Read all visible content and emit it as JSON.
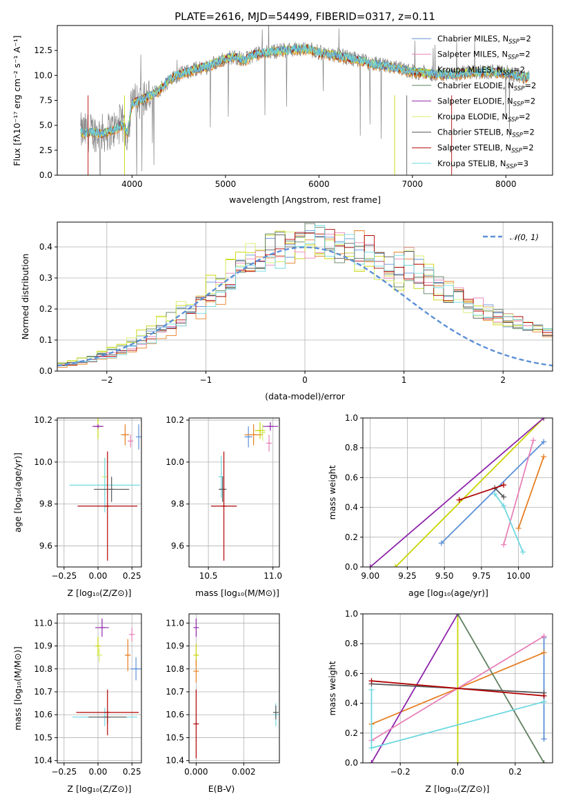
{
  "colors": {
    "chabrier_miles": "#5b8fd6",
    "salpeter_miles": "#e67e22",
    "kroupa_miles": "#c8d400",
    "chabrier_elodie": "#5f7f5f",
    "salpeter_elodie": "#8e24aa",
    "kroupa_elodie": "#d4ee66",
    "chabrier_stelib": "#555555",
    "salpeter_stelib": "#b00000",
    "kroupa_stelib": "#6ed8e0",
    "data": "#808080",
    "pink": "#e880b8"
  },
  "chart_data": [
    {
      "id": "spectrum",
      "type": "line",
      "title": "PLATE=2616, MJD=54499, FIBERID=0317, z=0.11",
      "xlabel": "wavelength [Angstrom, rest frame]",
      "ylabel": "Flux [fλ10⁻¹⁷ erg cm⁻² s⁻¹ A⁻¹]",
      "xlim": [
        3200,
        8500
      ],
      "ylim": [
        0,
        15
      ],
      "xticks": [
        "4000",
        "5000",
        "6000",
        "7000",
        "8000"
      ],
      "yticks": [
        "0.0",
        "2.5",
        "5.0",
        "7.5",
        "10.0",
        "12.5"
      ],
      "continuum": [
        [
          3450,
          4.3
        ],
        [
          3600,
          4.3
        ],
        [
          3700,
          4.2
        ],
        [
          3800,
          4.6
        ],
        [
          3900,
          5.1
        ],
        [
          3950,
          4.2
        ],
        [
          4000,
          7.2
        ],
        [
          4100,
          7.6
        ],
        [
          4200,
          8.0
        ],
        [
          4300,
          8.6
        ],
        [
          4400,
          9.6
        ],
        [
          4500,
          10.1
        ],
        [
          4700,
          10.7
        ],
        [
          4800,
          10.9
        ],
        [
          4900,
          11.3
        ],
        [
          5000,
          11.7
        ],
        [
          5100,
          11.9
        ],
        [
          5200,
          11.5
        ],
        [
          5300,
          12.1
        ],
        [
          5500,
          12.4
        ],
        [
          5800,
          12.7
        ],
        [
          5900,
          12.6
        ],
        [
          6000,
          12.3
        ],
        [
          6200,
          12.0
        ],
        [
          6400,
          11.6
        ],
        [
          6600,
          11.1
        ],
        [
          6800,
          10.8
        ],
        [
          7000,
          10.4
        ],
        [
          7200,
          10.2
        ],
        [
          7400,
          10.1
        ],
        [
          7600,
          10.3
        ],
        [
          7800,
          10.4
        ],
        [
          8000,
          10.3
        ],
        [
          8200,
          9.8
        ],
        [
          8250,
          9.9
        ]
      ],
      "legend": [
        {
          "name": "Chabrier MILES, N",
          "sub": "SSP",
          "suffix": "=2"
        },
        {
          "name": "Salpeter MILES, N",
          "sub": "SSP",
          "suffix": "=2"
        },
        {
          "name": "Kroupa MILES, N",
          "sub": "SSP",
          "suffix": "=2"
        },
        {
          "name": "Chabrier ELODIE, N",
          "sub": "SSP",
          "suffix": "=2"
        },
        {
          "name": "Salpeter ELODIE, N",
          "sub": "SSP",
          "suffix": "=2"
        },
        {
          "name": "Kroupa ELODIE, N",
          "sub": "SSP",
          "suffix": "=2"
        },
        {
          "name": "Chabrier STELIB, N",
          "sub": "SSP",
          "suffix": "=2"
        },
        {
          "name": "Salpeter STELIB, N",
          "sub": "SSP",
          "suffix": "=2"
        },
        {
          "name": "Kroupa STELIB, N",
          "sub": "SSP",
          "suffix": "=3"
        }
      ]
    },
    {
      "id": "residuals",
      "type": "line",
      "xlabel": "(data-model)/error",
      "ylabel": "Normed distribution",
      "xlim": [
        -2.5,
        2.5
      ],
      "ylim": [
        0,
        0.48
      ],
      "xticks": [
        "−2",
        "−1",
        "0",
        "1",
        "2"
      ],
      "yticks": [
        "0.0",
        "0.1",
        "0.2",
        "0.3",
        "0.4"
      ],
      "normal_label": "𝒩(0, 1)",
      "bin_width": 0.1,
      "shifts": [
        0.1,
        0.28,
        0.0,
        0.06,
        0.18,
        0.02,
        0.14,
        0.2,
        0.22
      ]
    },
    {
      "id": "age_vs_Z",
      "type": "scatter",
      "xlabel": "Z [log₁₀(Z/Z⊙)]",
      "ylabel": "age  [log₁₀(age/yr)]",
      "xlim": [
        -0.3,
        0.32
      ],
      "ylim": [
        9.5,
        10.21
      ],
      "xticks": [
        "−0.25",
        "0.00",
        "0.25"
      ],
      "yticks": [
        "9.6",
        "9.8",
        "10.0",
        "10.2"
      ],
      "points": [
        {
          "x": 0.3,
          "xerr": 0.0,
          "y": 10.12,
          "yerr": 0.06,
          "c": "chabrier_miles"
        },
        {
          "x": 0.2,
          "xerr": 0.03,
          "y": 10.13,
          "yerr": 0.05,
          "c": "salpeter_miles"
        },
        {
          "x": 0.0,
          "xerr": 0.03,
          "y": 10.17,
          "yerr": 0.06,
          "c": "kroupa_miles"
        },
        {
          "x": 0.0,
          "xerr": 0.04,
          "y": 10.17,
          "yerr": 0.01,
          "c": "salpeter_elodie"
        },
        {
          "x": 0.05,
          "xerr": 0.01,
          "y": 9.93,
          "yerr": 0.09,
          "c": "kroupa_elodie"
        },
        {
          "x": 0.05,
          "xerr": 0.26,
          "y": 9.89,
          "yerr": 0.13,
          "c": "kroupa_stelib"
        },
        {
          "x": 0.1,
          "xerr": 0.13,
          "y": 9.87,
          "yerr": 0.06,
          "c": "chabrier_stelib"
        },
        {
          "x": 0.07,
          "xerr": 0.22,
          "y": 9.79,
          "yerr": 0.26,
          "c": "salpeter_stelib"
        },
        {
          "x": 0.24,
          "xerr": 0.02,
          "y": 10.1,
          "yerr": 0.03,
          "c": "pink"
        }
      ]
    },
    {
      "id": "age_vs_mass",
      "type": "scatter",
      "xlabel": "mass [log₁₀(M/M⊙)]",
      "ylabel": "",
      "xlim": [
        10.35,
        11.05
      ],
      "ylim": [
        9.5,
        10.21
      ],
      "xticks": [
        "10.5",
        "11.0"
      ],
      "yticks": [
        "9.6",
        "9.8",
        "10.0",
        "10.2"
      ],
      "points": [
        {
          "x": 10.81,
          "xerr": 0.03,
          "y": 10.12,
          "yerr": 0.05,
          "c": "chabrier_miles"
        },
        {
          "x": 10.85,
          "xerr": 0.07,
          "y": 10.13,
          "yerr": 0.05,
          "c": "salpeter_miles"
        },
        {
          "x": 10.9,
          "xerr": 0.04,
          "y": 10.15,
          "yerr": 0.04,
          "c": "kroupa_miles"
        },
        {
          "x": 10.98,
          "xerr": 0.06,
          "y": 10.17,
          "yerr": 0.02,
          "c": "salpeter_elodie"
        },
        {
          "x": 10.92,
          "xerr": 0.02,
          "y": 10.14,
          "yerr": 0.04,
          "c": "kroupa_elodie"
        },
        {
          "x": 10.97,
          "xerr": 0.02,
          "y": 10.09,
          "yerr": 0.04,
          "c": "pink"
        },
        {
          "x": 10.6,
          "xerr": 0.01,
          "y": 9.93,
          "yerr": 0.1,
          "c": "kroupa_stelib"
        },
        {
          "x": 10.61,
          "xerr": 0.03,
          "y": 9.87,
          "yerr": 0.06,
          "c": "chabrier_stelib"
        },
        {
          "x": 10.62,
          "xerr": 0.1,
          "y": 9.79,
          "yerr": 0.26,
          "c": "salpeter_stelib"
        }
      ]
    },
    {
      "id": "weight_vs_age",
      "type": "line",
      "xlabel": "age  [log₁₀(age/yr)]",
      "ylabel": "mass weight",
      "xlim": [
        8.95,
        10.23
      ],
      "ylim": [
        0,
        1
      ],
      "xticks": [
        "9.00",
        "9.25",
        "9.50",
        "9.75",
        "10.00"
      ],
      "yticks": [
        "0.0",
        "0.2",
        "0.4",
        "0.6",
        "0.8",
        "1.0"
      ],
      "series": [
        {
          "c": "chabrier_miles",
          "x": [
            9.48,
            10.17
          ],
          "y": [
            0.16,
            0.84
          ]
        },
        {
          "c": "salpeter_miles",
          "x": [
            10.0,
            10.17
          ],
          "y": [
            0.26,
            0.74
          ]
        },
        {
          "c": "kroupa_miles",
          "x": [
            9.17,
            10.17
          ],
          "y": [
            0.0,
            1.0
          ]
        },
        {
          "c": "salpeter_elodie",
          "x": [
            9.0,
            10.17
          ],
          "y": [
            0.0,
            1.0
          ]
        },
        {
          "c": "pink",
          "x": [
            9.9,
            10.1
          ],
          "y": [
            0.15,
            0.85
          ]
        },
        {
          "c": "kroupa_stelib",
          "x": [
            9.84,
            9.9,
            10.03
          ],
          "y": [
            0.49,
            0.41,
            0.1
          ]
        },
        {
          "c": "chabrier_stelib",
          "x": [
            9.84,
            9.9
          ],
          "y": [
            0.53,
            0.47
          ]
        },
        {
          "c": "salpeter_stelib",
          "x": [
            9.6,
            9.9
          ],
          "y": [
            0.45,
            0.55
          ]
        }
      ]
    },
    {
      "id": "mass_vs_Z",
      "type": "scatter",
      "xlabel": "Z [log₁₀(Z/Z⊙)]",
      "ylabel": "mass [log₁₀(M/M⊙)]",
      "xlim": [
        -0.3,
        0.32
      ],
      "ylim": [
        10.39,
        11.04
      ],
      "xticks": [
        "−0.25",
        "0.00",
        "0.25"
      ],
      "yticks": [
        "10.4",
        "10.5",
        "10.6",
        "10.7",
        "10.8",
        "10.9",
        "11.0"
      ],
      "points": [
        {
          "x": 0.28,
          "xerr": 0.04,
          "y": 10.8,
          "yerr": 0.05,
          "c": "chabrier_miles"
        },
        {
          "x": 0.22,
          "xerr": 0.02,
          "y": 10.86,
          "yerr": 0.07,
          "c": "salpeter_miles"
        },
        {
          "x": 0.0,
          "xerr": 0.02,
          "y": 10.9,
          "yerr": 0.04,
          "c": "kroupa_miles"
        },
        {
          "x": 0.03,
          "xerr": 0.05,
          "y": 10.98,
          "yerr": 0.04,
          "c": "salpeter_elodie"
        },
        {
          "x": 0.01,
          "xerr": 0.0,
          "y": 10.86,
          "yerr": 0.03,
          "c": "kroupa_elodie"
        },
        {
          "x": 0.25,
          "xerr": 0.02,
          "y": 10.95,
          "yerr": 0.03,
          "c": "pink"
        },
        {
          "x": 0.05,
          "xerr": 0.24,
          "y": 10.59,
          "yerr": 0.04,
          "c": "kroupa_stelib"
        },
        {
          "x": 0.07,
          "xerr": 0.14,
          "y": 10.59,
          "yerr": 0.03,
          "c": "chabrier_stelib"
        },
        {
          "x": 0.07,
          "xerr": 0.23,
          "y": 10.61,
          "yerr": 0.1,
          "c": "salpeter_stelib"
        }
      ]
    },
    {
      "id": "mass_vs_ebv",
      "type": "scatter",
      "xlabel": "E(B-V)",
      "ylabel": "",
      "xlim": [
        -0.0003,
        0.0035
      ],
      "ylim": [
        10.39,
        11.04
      ],
      "xticks": [
        "0.000",
        "0.002"
      ],
      "yticks": [
        "10.4",
        "10.5",
        "10.6",
        "10.7",
        "10.8",
        "10.9",
        "11.0"
      ],
      "points": [
        {
          "x": 0.0,
          "xerr": 0.0,
          "y": 10.98,
          "yerr": 0.04,
          "c": "salpeter_elodie"
        },
        {
          "x": 0.0,
          "xerr": 0.0,
          "y": 10.86,
          "yerr": 0.05,
          "c": "kroupa_miles"
        },
        {
          "x": 0.0,
          "xerr": 0.0,
          "y": 10.79,
          "yerr": 0.05,
          "c": "salpeter_miles"
        },
        {
          "x": 0.0,
          "xerr": 0.0,
          "y": 10.56,
          "yerr": 0.15,
          "c": "salpeter_stelib"
        },
        {
          "x": 0.00335,
          "xerr": 0.0,
          "y": 10.6,
          "yerr": 0.05,
          "c": "kroupa_stelib"
        },
        {
          "x": 0.00335,
          "xerr": 0.0,
          "y": 10.61,
          "yerr": 0.03,
          "c": "chabrier_stelib"
        }
      ]
    },
    {
      "id": "weight_vs_Z",
      "type": "line",
      "xlabel": "Z [log₁₀(Z/Z⊙)]",
      "ylabel": "mass weight",
      "xlim": [
        -0.33,
        0.33
      ],
      "ylim": [
        0,
        1
      ],
      "xticks": [
        "−0.2",
        "0.0",
        "0.2"
      ],
      "yticks": [
        "0.0",
        "0.2",
        "0.4",
        "0.6",
        "0.8",
        "1.0"
      ],
      "series": [
        {
          "c": "chabrier_miles",
          "x": [
            0.3,
            0.3
          ],
          "y": [
            0.16,
            0.84
          ]
        },
        {
          "c": "salpeter_miles",
          "x": [
            -0.3,
            0.3
          ],
          "y": [
            0.26,
            0.74
          ]
        },
        {
          "c": "kroupa_miles",
          "x": [
            0.0,
            0.0
          ],
          "y": [
            0.0,
            1.0
          ]
        },
        {
          "c": "salpeter_elodie",
          "x": [
            -0.3,
            0.0
          ],
          "y": [
            0.0,
            1.0
          ]
        },
        {
          "c": "chabrier_elodie",
          "x": [
            0.0,
            0.3
          ],
          "y": [
            1.0,
            0.0
          ]
        },
        {
          "c": "pink",
          "x": [
            -0.3,
            0.3
          ],
          "y": [
            0.15,
            0.85
          ]
        },
        {
          "c": "kroupa_stelib",
          "x": [
            -0.3,
            -0.3,
            0.3
          ],
          "y": [
            0.49,
            0.1,
            0.41
          ]
        },
        {
          "c": "chabrier_stelib",
          "x": [
            -0.3,
            0.3
          ],
          "y": [
            0.53,
            0.47
          ]
        },
        {
          "c": "salpeter_stelib",
          "x": [
            -0.3,
            0.3
          ],
          "y": [
            0.55,
            0.45
          ]
        }
      ]
    }
  ]
}
